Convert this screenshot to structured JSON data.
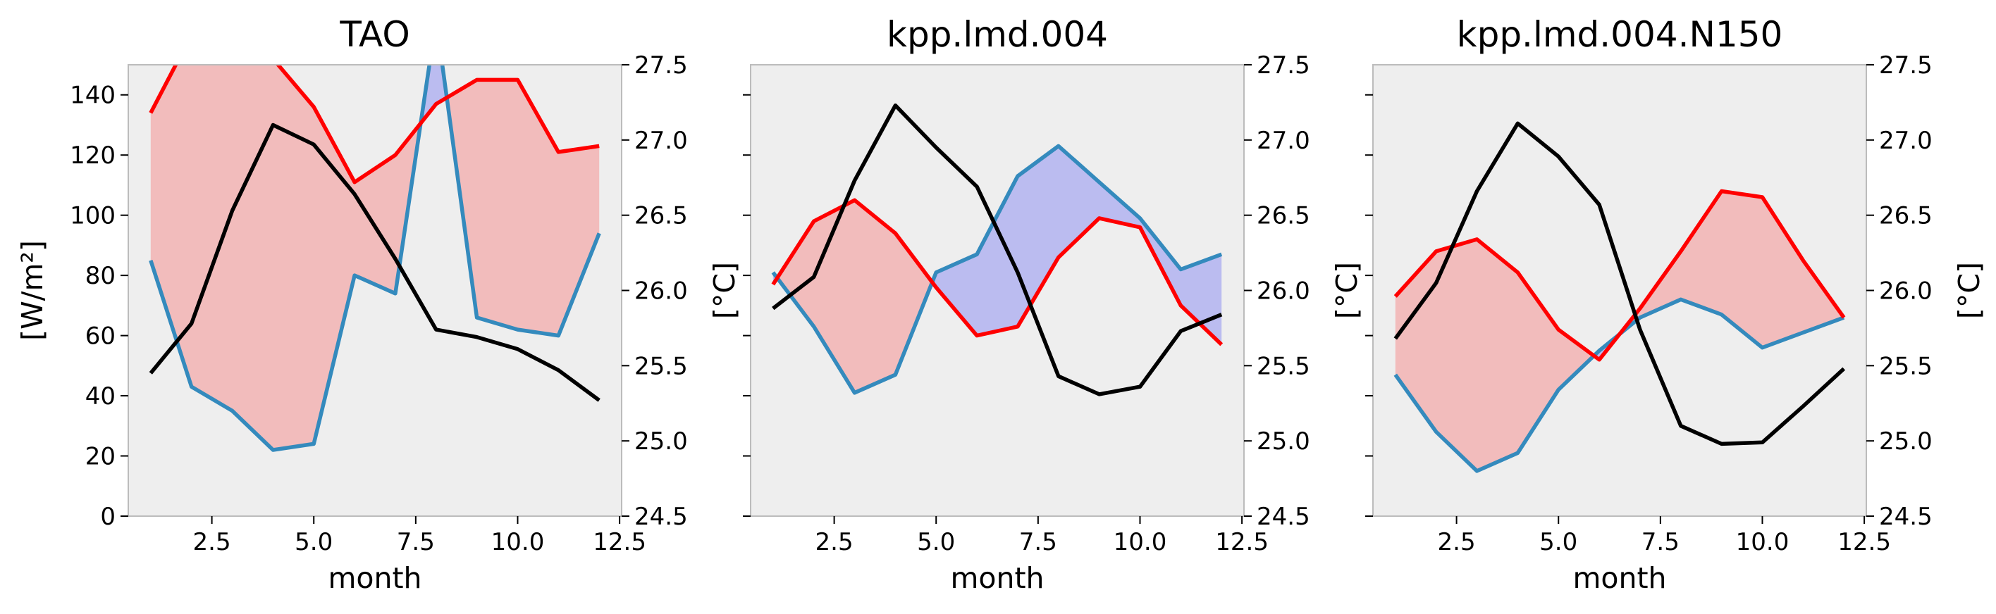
{
  "figure": {
    "background": "#ffffff",
    "axes_face": "#eeeeee",
    "colors": {
      "blue_series": "#348abd",
      "red_series": "#ff0000",
      "black_series": "#000000",
      "red_fill": "#f2bcbc",
      "blue_fill": "#bbbcf0"
    }
  },
  "chart_data": [
    {
      "type": "line",
      "title": "TAO",
      "xlabel": "month",
      "ylabel": "[W/m²]",
      "y2label": "[°C]",
      "xlim": [
        0.45,
        12.55
      ],
      "ylim": [
        0,
        150
      ],
      "y2lim": [
        24.5,
        27.5
      ],
      "xticks": [
        "2.5",
        "5.0",
        "7.5",
        "10.0",
        "12.5"
      ],
      "yticks": [
        "0",
        "20",
        "40",
        "60",
        "80",
        "100",
        "120",
        "140"
      ],
      "y2ticks": [
        "24.5",
        "25.0",
        "25.5",
        "26.0",
        "26.5",
        "27.0",
        "27.5"
      ],
      "show_left_tick_labels": true,
      "grid": false,
      "fill_between": "blue_series and red_series; red where red is above blue, blue where blue is above red",
      "x": [
        1,
        2,
        3,
        4,
        5,
        6,
        7,
        8,
        9,
        10,
        11,
        12
      ],
      "series": [
        {
          "axis": "left",
          "color": "#348abd",
          "values": [
            85,
            43,
            35,
            22,
            24,
            80,
            74,
            165,
            66,
            62,
            60,
            94
          ]
        },
        {
          "axis": "left",
          "color": "#ff0000",
          "values": [
            134,
            160,
            162,
            152,
            136,
            111,
            120,
            137,
            145,
            145,
            121,
            123
          ]
        },
        {
          "axis": "right",
          "color": "#000000",
          "values": [
            25.45,
            25.78,
            26.53,
            27.1,
            26.97,
            26.64,
            26.21,
            25.74,
            25.69,
            25.61,
            25.47,
            25.27
          ]
        }
      ]
    },
    {
      "type": "line",
      "title": "kpp.lmd.004",
      "xlabel": "month",
      "ylabel": "",
      "y2label": "[°C]",
      "xlim": [
        0.45,
        12.55
      ],
      "ylim": [
        0,
        150
      ],
      "y2lim": [
        24.5,
        27.5
      ],
      "xticks": [
        "2.5",
        "5.0",
        "7.5",
        "10.0",
        "12.5"
      ],
      "yticks": [],
      "y2ticks": [
        "24.5",
        "25.0",
        "25.5",
        "26.0",
        "26.5",
        "27.0",
        "27.5"
      ],
      "left_tick_values": [
        0,
        20,
        40,
        60,
        80,
        100,
        120,
        140
      ],
      "show_left_tick_labels": false,
      "grid": false,
      "fill_between": "blue_series and red_series; red where red is above blue, blue where blue is above red",
      "x": [
        1,
        2,
        3,
        4,
        5,
        6,
        7,
        8,
        9,
        10,
        11,
        12
      ],
      "series": [
        {
          "axis": "left",
          "color": "#348abd",
          "values": [
            81,
            63,
            41,
            47,
            81,
            87,
            113,
            123,
            111,
            99,
            82,
            87
          ]
        },
        {
          "axis": "left",
          "color": "#ff0000",
          "values": [
            77,
            98,
            105,
            94,
            76,
            60,
            63,
            86,
            99,
            96,
            70,
            57
          ]
        },
        {
          "axis": "right",
          "color": "#000000",
          "values": [
            25.88,
            26.09,
            26.73,
            27.23,
            26.95,
            26.69,
            26.12,
            25.43,
            25.31,
            25.36,
            25.73,
            25.84
          ]
        }
      ]
    },
    {
      "type": "line",
      "title": "kpp.lmd.004.N150",
      "xlabel": "month",
      "ylabel": "",
      "y2label": "[°C]",
      "xlim": [
        0.45,
        12.55
      ],
      "ylim": [
        0,
        150
      ],
      "y2lim": [
        24.5,
        27.5
      ],
      "xticks": [
        "2.5",
        "5.0",
        "7.5",
        "10.0",
        "12.5"
      ],
      "yticks": [],
      "y2ticks": [
        "24.5",
        "25.0",
        "25.5",
        "26.0",
        "26.5",
        "27.0",
        "27.5"
      ],
      "left_tick_values": [
        0,
        20,
        40,
        60,
        80,
        100,
        120,
        140
      ],
      "show_left_tick_labels": false,
      "grid": false,
      "fill_between": "blue_series and red_series; red where red is above blue, blue where blue is above red",
      "x": [
        1,
        2,
        3,
        4,
        5,
        6,
        7,
        8,
        9,
        10,
        11,
        12
      ],
      "series": [
        {
          "axis": "left",
          "color": "#348abd",
          "values": [
            47,
            28,
            15,
            21,
            42,
            55,
            66,
            72,
            67,
            56,
            61,
            66
          ]
        },
        {
          "axis": "left",
          "color": "#ff0000",
          "values": [
            73,
            88,
            92,
            81,
            62,
            52,
            69,
            88,
            108,
            106,
            85,
            66
          ]
        },
        {
          "axis": "right",
          "color": "#000000",
          "values": [
            25.68,
            26.05,
            26.66,
            27.11,
            26.89,
            26.57,
            25.74,
            25.1,
            24.98,
            24.99,
            25.23,
            25.48
          ]
        }
      ]
    }
  ]
}
